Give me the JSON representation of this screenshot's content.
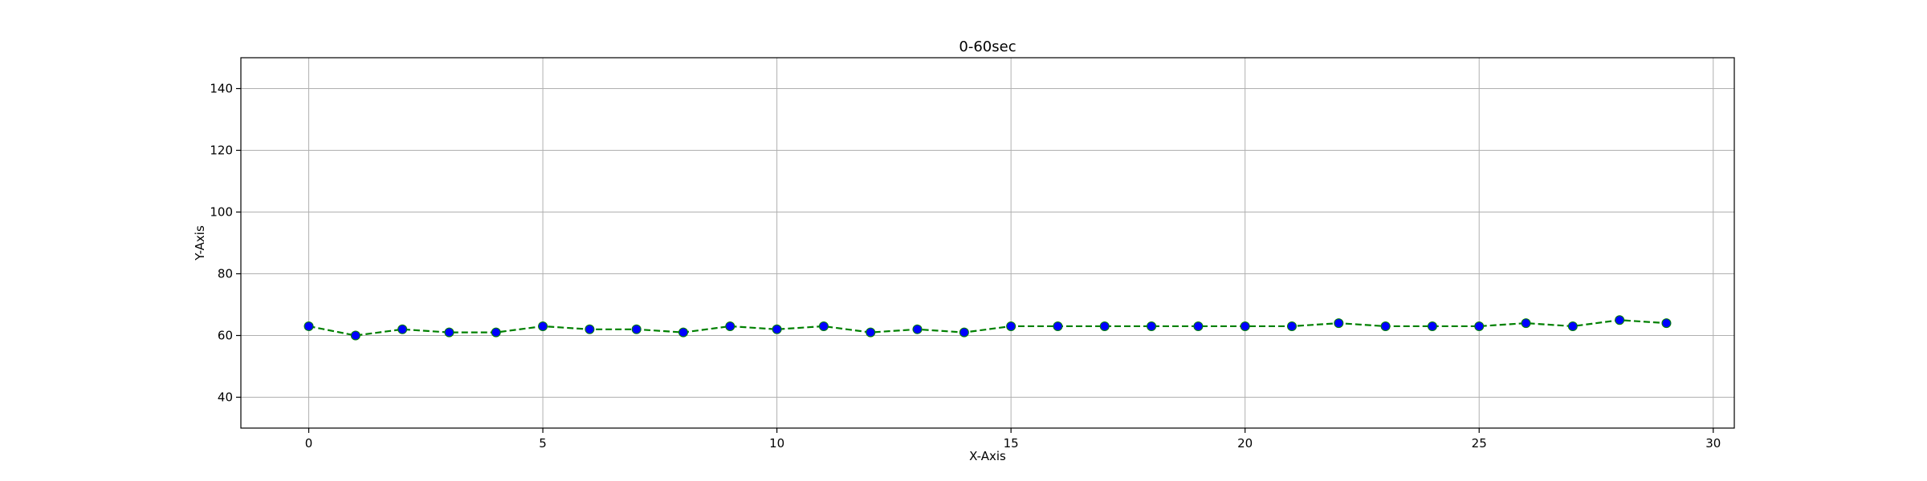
{
  "chart_data": {
    "type": "line",
    "title": "0-60sec",
    "xlabel": "X-Axis",
    "ylabel": "Y-Axis",
    "xlim": [
      -1.45,
      30.45
    ],
    "ylim": [
      30,
      150
    ],
    "xticks": [
      0,
      5,
      10,
      15,
      20,
      25,
      30
    ],
    "yticks": [
      40,
      60,
      80,
      100,
      120,
      140
    ],
    "grid": true,
    "series": [
      {
        "line_color": "#008000",
        "line_style": "dashed",
        "marker_color": "#0000ff",
        "marker": "circle",
        "x": [
          0,
          1,
          2,
          3,
          4,
          5,
          6,
          7,
          8,
          9,
          10,
          11,
          12,
          13,
          14,
          15,
          16,
          17,
          18,
          19,
          20,
          21,
          22,
          23,
          24,
          25,
          26,
          27,
          28,
          29
        ],
        "y": [
          63,
          60,
          62,
          61,
          61,
          63,
          62,
          62,
          61,
          63,
          62,
          63,
          61,
          62,
          61,
          63,
          63,
          63,
          63,
          63,
          63,
          63,
          64,
          63,
          63,
          63,
          64,
          63,
          65,
          64
        ]
      }
    ]
  }
}
